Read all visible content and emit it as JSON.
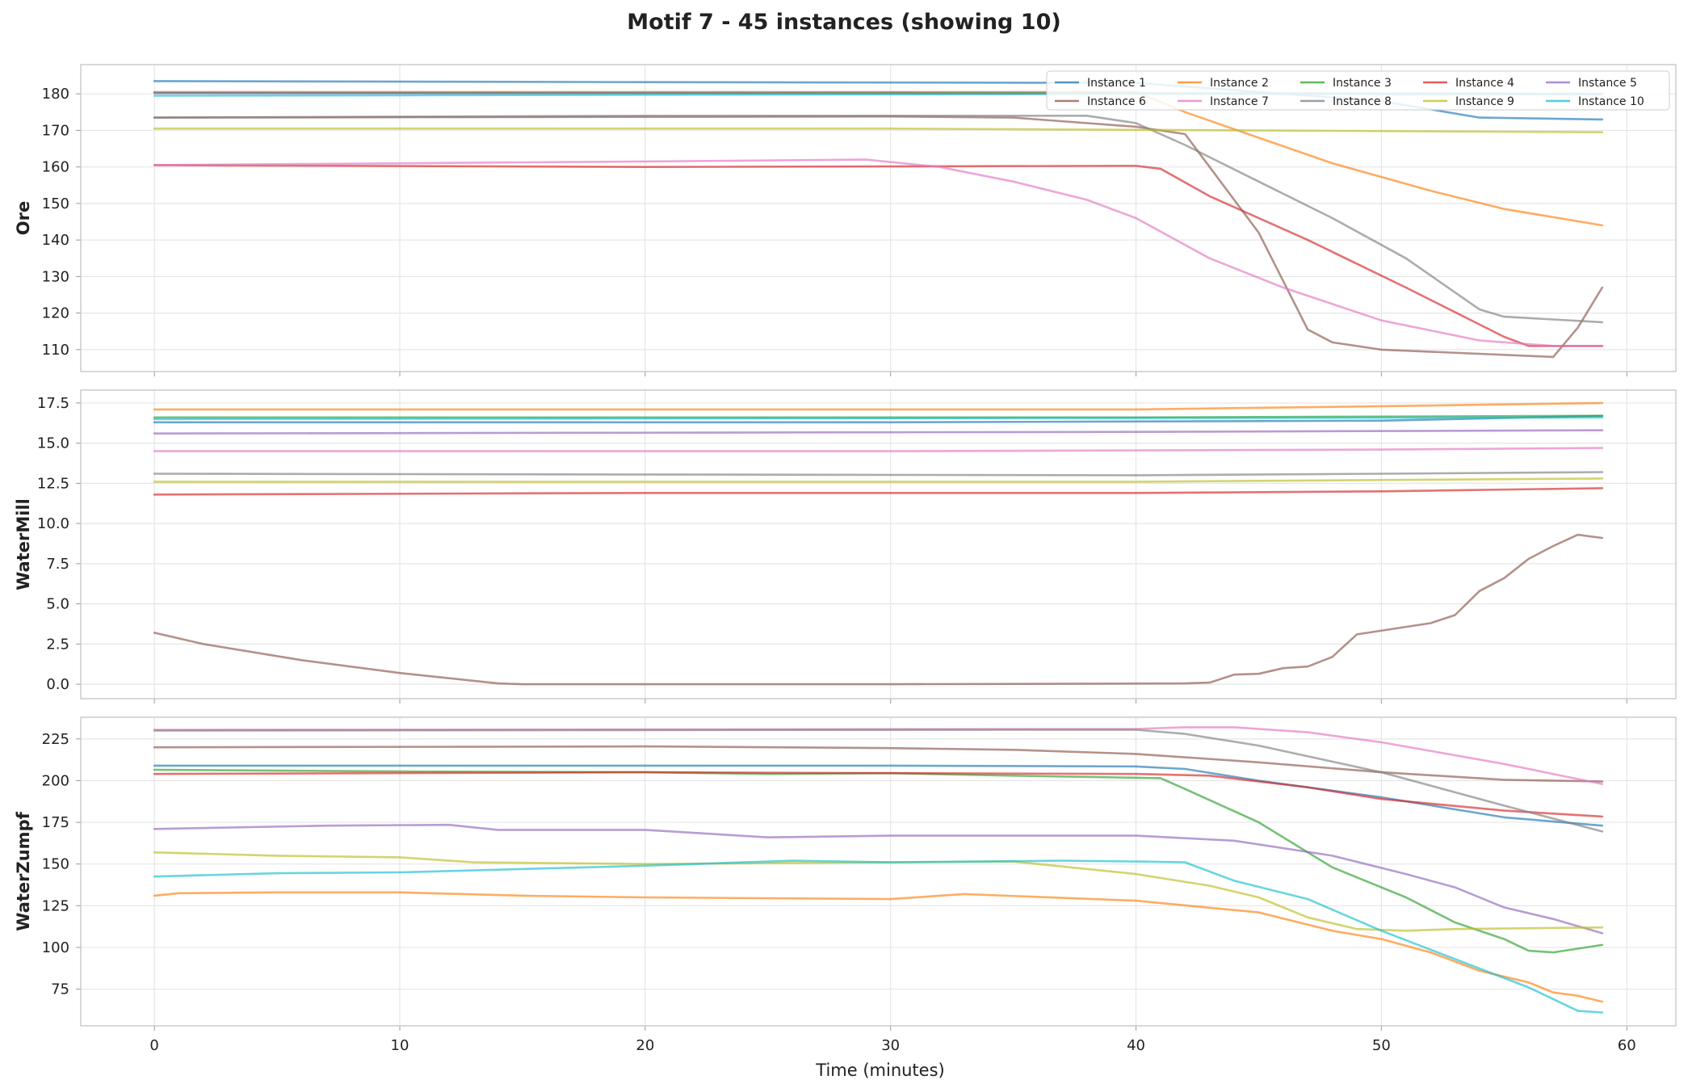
{
  "chart_data": {
    "type": "line",
    "title": "Motif 7 - 45 instances (showing 10)",
    "xlabel": "Time (minutes)",
    "xlim": [
      -3,
      62
    ],
    "xticks": [
      0,
      10,
      20,
      30,
      40,
      50,
      60
    ],
    "grid": true,
    "legend": {
      "placement": "top-right",
      "columns": 5
    },
    "series": [
      {
        "name": "Instance 1",
        "color": "#1f77b4"
      },
      {
        "name": "Instance 2",
        "color": "#ff7f0e"
      },
      {
        "name": "Instance 3",
        "color": "#2ca02c"
      },
      {
        "name": "Instance 4",
        "color": "#d62728"
      },
      {
        "name": "Instance 5",
        "color": "#9467bd"
      },
      {
        "name": "Instance 6",
        "color": "#8c564b"
      },
      {
        "name": "Instance 7",
        "color": "#e377c2"
      },
      {
        "name": "Instance 8",
        "color": "#7f7f7f"
      },
      {
        "name": "Instance 9",
        "color": "#bcbd22"
      },
      {
        "name": "Instance 10",
        "color": "#17becf"
      }
    ],
    "panels": [
      {
        "ylabel": "Ore",
        "ylim": [
          104,
          188
        ],
        "yticks": [
          110,
          120,
          130,
          140,
          150,
          160,
          170,
          180
        ],
        "lines": [
          [
            [
              0,
              183.5
            ],
            [
              20,
              183.2
            ],
            [
              40,
              183.0
            ],
            [
              50,
              178
            ],
            [
              54,
              173.5
            ],
            [
              59,
              173
            ]
          ],
          [
            [
              0,
              180.5
            ],
            [
              40,
              180.5
            ],
            [
              42,
              175
            ],
            [
              45,
              168
            ],
            [
              48,
              161
            ],
            [
              52,
              153.5
            ],
            [
              55,
              148.5
            ],
            [
              59,
              144
            ]
          ],
          [
            [
              0,
              180.3
            ],
            [
              30,
              180.3
            ],
            [
              59,
              180
            ]
          ],
          [
            [
              0,
              160.5
            ],
            [
              20,
              160
            ],
            [
              40,
              160.3
            ],
            [
              41,
              159.5
            ],
            [
              43,
              152
            ],
            [
              47,
              140
            ],
            [
              51,
              127
            ],
            [
              55,
              113.5
            ],
            [
              56,
              111
            ],
            [
              59,
              111
            ]
          ],
          [
            [
              0,
              180.2
            ],
            [
              59,
              180
            ]
          ],
          [
            [
              0,
              173.5
            ],
            [
              30,
              173.8
            ],
            [
              35,
              173.5
            ],
            [
              40,
              171
            ],
            [
              42,
              169
            ],
            [
              43,
              160
            ],
            [
              45,
              142
            ],
            [
              47,
              115.5
            ],
            [
              48,
              112
            ],
            [
              50,
              110
            ],
            [
              57,
              108
            ],
            [
              58,
              116
            ],
            [
              59,
              127
            ]
          ],
          [
            [
              0,
              160.5
            ],
            [
              20,
              161.5
            ],
            [
              29,
              162
            ],
            [
              32,
              160
            ],
            [
              35,
              156
            ],
            [
              38,
              151
            ],
            [
              40,
              146
            ],
            [
              43,
              135
            ],
            [
              46,
              127
            ],
            [
              50,
              118
            ],
            [
              54,
              112.5
            ],
            [
              57,
              111
            ],
            [
              59,
              111
            ]
          ],
          [
            [
              0,
              173.5
            ],
            [
              20,
              174
            ],
            [
              38,
              174
            ],
            [
              40,
              172
            ],
            [
              42,
              166
            ],
            [
              45,
              156
            ],
            [
              48,
              146
            ],
            [
              51,
              135
            ],
            [
              54,
              121
            ],
            [
              55,
              119
            ],
            [
              59,
              117.5
            ]
          ],
          [
            [
              0,
              170.5
            ],
            [
              30,
              170.5
            ],
            [
              59,
              169.5
            ]
          ],
          [
            [
              0,
              179.5
            ],
            [
              40,
              180
            ],
            [
              59,
              179.8
            ]
          ]
        ]
      },
      {
        "ylabel": "WaterMill",
        "ylim": [
          -0.9,
          18.3
        ],
        "yticks": [
          0.0,
          2.5,
          5.0,
          7.5,
          10.0,
          12.5,
          15.0,
          17.5
        ],
        "yticklabels": [
          "0.0",
          "2.5",
          "5.0",
          "7.5",
          "10.0",
          "12.5",
          "15.0",
          "17.5"
        ],
        "lines": [
          [
            [
              0,
              16.3
            ],
            [
              30,
              16.3
            ],
            [
              50,
              16.4
            ],
            [
              59,
              16.7
            ]
          ],
          [
            [
              0,
              17.1
            ],
            [
              40,
              17.1
            ],
            [
              50,
              17.3
            ],
            [
              59,
              17.5
            ]
          ],
          [
            [
              0,
              16.6
            ],
            [
              40,
              16.6
            ],
            [
              59,
              16.7
            ]
          ],
          [
            [
              0,
              11.8
            ],
            [
              20,
              11.9
            ],
            [
              40,
              11.9
            ],
            [
              50,
              12.0
            ],
            [
              59,
              12.2
            ]
          ],
          [
            [
              0,
              15.6
            ],
            [
              40,
              15.7
            ],
            [
              59,
              15.8
            ]
          ],
          [
            [
              0,
              3.2
            ],
            [
              2,
              2.5
            ],
            [
              6,
              1.5
            ],
            [
              10,
              0.7
            ],
            [
              14,
              0.05
            ],
            [
              15,
              0
            ],
            [
              30,
              0
            ],
            [
              42,
              0.05
            ],
            [
              43,
              0.1
            ],
            [
              44,
              0.6
            ],
            [
              45,
              0.65
            ],
            [
              46,
              1.0
            ],
            [
              47,
              1.1
            ],
            [
              48,
              1.7
            ],
            [
              49,
              3.1
            ],
            [
              52,
              3.8
            ],
            [
              53,
              4.3
            ],
            [
              54,
              5.8
            ],
            [
              55,
              6.6
            ],
            [
              56,
              7.8
            ],
            [
              57,
              8.6
            ],
            [
              58,
              9.3
            ],
            [
              59,
              9.1
            ]
          ],
          [
            [
              0,
              14.5
            ],
            [
              30,
              14.5
            ],
            [
              50,
              14.6
            ],
            [
              59,
              14.7
            ]
          ],
          [
            [
              0,
              13.1
            ],
            [
              40,
              13.0
            ],
            [
              50,
              13.1
            ],
            [
              59,
              13.2
            ]
          ],
          [
            [
              0,
              12.6
            ],
            [
              40,
              12.6
            ],
            [
              59,
              12.8
            ]
          ],
          [
            [
              0,
              16.5
            ],
            [
              59,
              16.6
            ]
          ]
        ]
      },
      {
        "ylabel": "WaterZumpf",
        "ylim": [
          53,
          238
        ],
        "yticks": [
          75,
          100,
          125,
          150,
          175,
          200,
          225
        ],
        "lines": [
          [
            [
              0,
              209
            ],
            [
              30,
              209
            ],
            [
              40,
              208.5
            ],
            [
              42,
              207
            ],
            [
              45,
              200
            ],
            [
              50,
              190
            ],
            [
              55,
              178
            ],
            [
              59,
              173
            ]
          ],
          [
            [
              0,
              131
            ],
            [
              1,
              132.5
            ],
            [
              5,
              133
            ],
            [
              10,
              133
            ],
            [
              15,
              131
            ],
            [
              20,
              130
            ],
            [
              30,
              129
            ],
            [
              33,
              132
            ],
            [
              40,
              128
            ],
            [
              45,
              121
            ],
            [
              48,
              110
            ],
            [
              50,
              105
            ],
            [
              52,
              97
            ],
            [
              54,
              86
            ],
            [
              56,
              79
            ],
            [
              57,
              73
            ],
            [
              58,
              71
            ],
            [
              59,
              67.5
            ]
          ],
          [
            [
              0,
              206.5
            ],
            [
              10,
              205.5
            ],
            [
              20,
              205
            ],
            [
              25,
              204
            ],
            [
              30,
              204.5
            ],
            [
              35,
              203
            ],
            [
              41,
              201.5
            ],
            [
              42,
              195
            ],
            [
              45,
              175
            ],
            [
              48,
              148
            ],
            [
              51,
              130
            ],
            [
              53,
              115
            ],
            [
              55,
              105
            ],
            [
              56,
              98
            ],
            [
              57,
              97
            ],
            [
              59,
              101.5
            ]
          ],
          [
            [
              0,
              204
            ],
            [
              20,
              205
            ],
            [
              30,
              204.5
            ],
            [
              40,
              204
            ],
            [
              43,
              203
            ],
            [
              47,
              196
            ],
            [
              50,
              189
            ],
            [
              55,
              182
            ],
            [
              59,
              178.5
            ]
          ],
          [
            [
              0,
              171
            ],
            [
              7,
              173
            ],
            [
              12,
              173.5
            ],
            [
              14,
              170.5
            ],
            [
              20,
              170.5
            ],
            [
              25,
              166
            ],
            [
              30,
              167
            ],
            [
              40,
              167
            ],
            [
              44,
              164
            ],
            [
              48,
              155
            ],
            [
              51,
              144
            ],
            [
              53,
              136
            ],
            [
              55,
              124
            ],
            [
              57,
              117
            ],
            [
              59,
              108.5
            ]
          ],
          [
            [
              0,
              220
            ],
            [
              20,
              220.5
            ],
            [
              30,
              219.5
            ],
            [
              35,
              218.5
            ],
            [
              40,
              216
            ],
            [
              45,
              211
            ],
            [
              50,
              205
            ],
            [
              55,
              200.5
            ],
            [
              59,
              199.5
            ]
          ],
          [
            [
              0,
              230.5
            ],
            [
              40,
              231
            ],
            [
              42,
              232
            ],
            [
              44,
              232
            ],
            [
              47,
              229
            ],
            [
              50,
              223
            ],
            [
              55,
              210
            ],
            [
              59,
              198
            ]
          ],
          [
            [
              0,
              230
            ],
            [
              35,
              230.5
            ],
            [
              40,
              230.5
            ],
            [
              42,
              228
            ],
            [
              45,
              221
            ],
            [
              50,
              205
            ],
            [
              55,
              185
            ],
            [
              59,
              169.5
            ]
          ],
          [
            [
              0,
              157
            ],
            [
              5,
              155
            ],
            [
              10,
              154
            ],
            [
              13,
              151
            ],
            [
              20,
              150
            ],
            [
              30,
              151
            ],
            [
              35,
              151.5
            ],
            [
              40,
              144
            ],
            [
              43,
              137
            ],
            [
              45,
              130
            ],
            [
              47,
              118
            ],
            [
              49,
              111
            ],
            [
              51,
              110
            ],
            [
              53,
              111
            ],
            [
              59,
              112
            ]
          ],
          [
            [
              0,
              142.5
            ],
            [
              5,
              144.5
            ],
            [
              10,
              145
            ],
            [
              20,
              149
            ],
            [
              26,
              152
            ],
            [
              30,
              151
            ],
            [
              37,
              152
            ],
            [
              40,
              151.5
            ],
            [
              42,
              151
            ],
            [
              44,
              140
            ],
            [
              47,
              129
            ],
            [
              50,
              110
            ],
            [
              53,
              93
            ],
            [
              56,
              76
            ],
            [
              58,
              62
            ],
            [
              59,
              61
            ]
          ]
        ]
      }
    ]
  }
}
